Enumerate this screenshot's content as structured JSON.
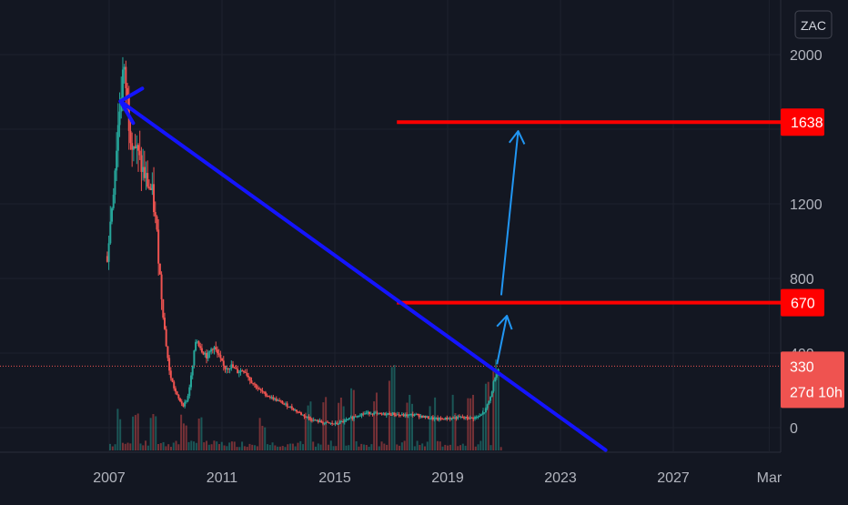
{
  "symbol_badge": "ZAC",
  "colors": {
    "background": "#131722",
    "grid": "#1e222d",
    "axis_text": "#b2b5be",
    "up": "#26a69a",
    "down": "#ef5350",
    "trendline": "#1414ff",
    "levels": "#ff0000",
    "arrows": "#2196f3",
    "price_line": "#ef5350"
  },
  "chart_data": {
    "type": "candlestick",
    "title": "",
    "xlabel": "",
    "ylabel": "",
    "grid": true,
    "x_ticks": [
      "2007",
      "2011",
      "2015",
      "2019",
      "2023",
      "2027",
      "Mar"
    ],
    "y_ticks": [
      "0",
      "400",
      "800",
      "1200",
      "2000"
    ],
    "ylim": [
      -120,
      2080
    ],
    "xlim": [
      2006.4,
      2029.0
    ],
    "last_price": {
      "label": "330",
      "countdown": "27d 10h",
      "value": 330
    },
    "levels": [
      {
        "label": "1638",
        "value": 1638,
        "from_year": 2017.2
      },
      {
        "label": "670",
        "value": 670,
        "from_year": 2017.2
      }
    ],
    "trendline": {
      "from": [
        2007.4,
        1750
      ],
      "to": [
        2024.6,
        -120
      ]
    },
    "trendline_arrowhead_at": [
      2007.4,
      1750
    ],
    "arrows": [
      {
        "from": [
          2020.9,
          710
        ],
        "to": [
          2021.5,
          1590
        ]
      },
      {
        "from": [
          2020.75,
          340
        ],
        "to": [
          2021.1,
          600
        ]
      }
    ],
    "price_path": [
      [
        2006.9,
        920
      ],
      [
        2007.1,
        1250
      ],
      [
        2007.3,
        1650
      ],
      [
        2007.45,
        1900
      ],
      [
        2007.55,
        1850
      ],
      [
        2007.7,
        1600
      ],
      [
        2007.9,
        1500
      ],
      [
        2008.1,
        1400
      ],
      [
        2008.3,
        1320
      ],
      [
        2008.5,
        1250
      ],
      [
        2008.65,
        1050
      ],
      [
        2008.8,
        750
      ],
      [
        2008.95,
        500
      ],
      [
        2009.1,
        300
      ],
      [
        2009.25,
        220
      ],
      [
        2009.4,
        160
      ],
      [
        2009.6,
        120
      ],
      [
        2009.75,
        160
      ],
      [
        2009.9,
        300
      ],
      [
        2010.05,
        480
      ],
      [
        2010.25,
        420
      ],
      [
        2010.45,
        380
      ],
      [
        2010.65,
        440
      ],
      [
        2010.85,
        380
      ],
      [
        2011.05,
        320
      ],
      [
        2011.3,
        330
      ],
      [
        2011.5,
        300
      ],
      [
        2011.75,
        310
      ],
      [
        2012.0,
        250
      ],
      [
        2012.3,
        200
      ],
      [
        2012.6,
        170
      ],
      [
        2013.0,
        140
      ],
      [
        2013.4,
        110
      ],
      [
        2013.8,
        70
      ],
      [
        2014.2,
        40
      ],
      [
        2014.6,
        25
      ],
      [
        2015.0,
        20
      ],
      [
        2015.4,
        40
      ],
      [
        2015.8,
        70
      ],
      [
        2016.2,
        80
      ],
      [
        2016.6,
        70
      ],
      [
        2017.0,
        75
      ],
      [
        2017.4,
        65
      ],
      [
        2017.8,
        70
      ],
      [
        2018.2,
        55
      ],
      [
        2018.6,
        45
      ],
      [
        2019.0,
        50
      ],
      [
        2019.4,
        55
      ],
      [
        2019.8,
        50
      ],
      [
        2020.1,
        60
      ],
      [
        2020.3,
        90
      ],
      [
        2020.5,
        170
      ],
      [
        2020.65,
        280
      ],
      [
        2020.8,
        330
      ]
    ],
    "volume_spikes": [
      [
        2007.3,
        0.4
      ],
      [
        2007.9,
        0.5
      ],
      [
        2008.5,
        0.45
      ],
      [
        2009.6,
        0.35
      ],
      [
        2010.2,
        0.4
      ],
      [
        2012.4,
        0.35
      ],
      [
        2014.0,
        0.45
      ],
      [
        2014.6,
        0.55
      ],
      [
        2015.2,
        0.6
      ],
      [
        2015.6,
        0.75
      ],
      [
        2016.4,
        0.7
      ],
      [
        2017.0,
        0.8
      ],
      [
        2017.6,
        0.6
      ],
      [
        2018.4,
        0.5
      ],
      [
        2019.2,
        0.55
      ],
      [
        2019.8,
        0.6
      ],
      [
        2020.3,
        0.65
      ],
      [
        2020.7,
        0.85
      ]
    ]
  }
}
